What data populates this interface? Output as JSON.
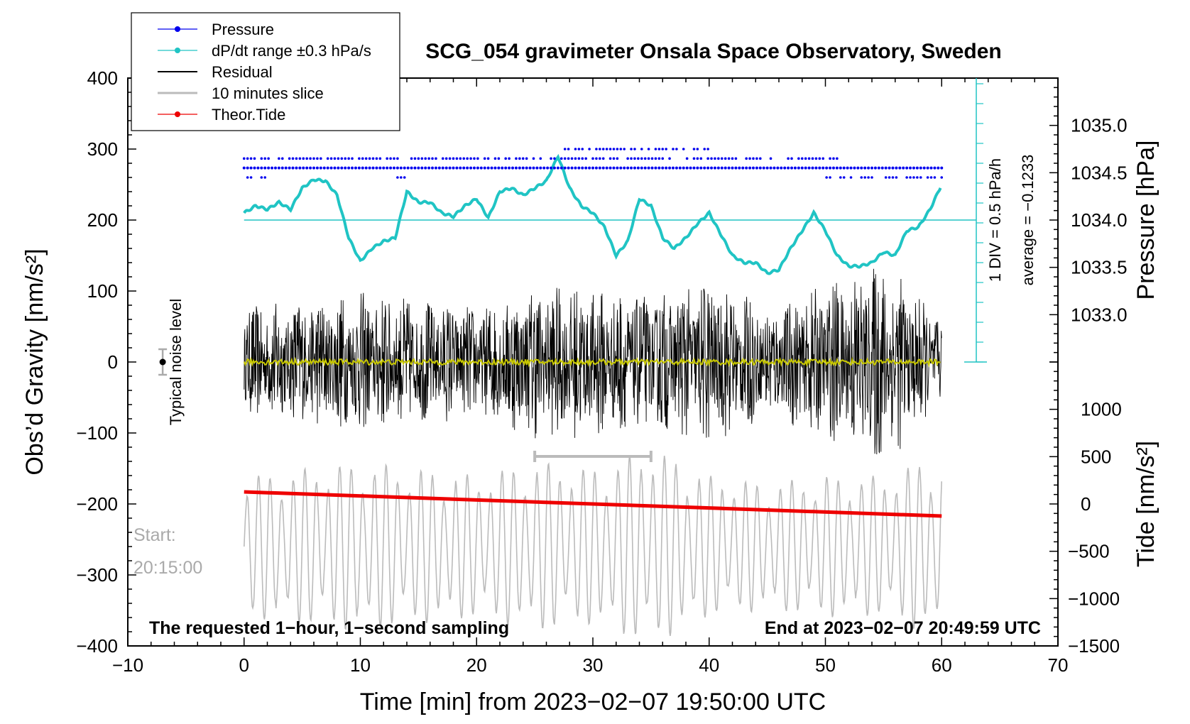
{
  "chart_data": {
    "type": "line",
    "title": "SCG_054 gravimeter Onsala Space Observatory, Sweden",
    "xlabel": "Time [min] from 2023−02−07 19:50:00 UTC",
    "ylabel_left": "Obs’d Gravity [nm/s²]",
    "ylabel_right_top": "Pressure [hPa]",
    "ylabel_right_bottom": "Tide [nm/s²]",
    "xlim": [
      -10,
      70
    ],
    "ylim": [
      -400,
      400
    ],
    "x_ticks": [
      "−10",
      "0",
      "10",
      "20",
      "30",
      "40",
      "50",
      "60",
      "70"
    ],
    "y_ticks_left": [
      "400",
      "300",
      "200",
      "100",
      "0",
      "−100",
      "−200",
      "−300",
      "−400"
    ],
    "pressure_axis": {
      "range_hpa": [
        1032.5,
        1035.5
      ],
      "ticks": [
        "1035.0",
        "1034.5",
        "1034.0",
        "1033.5",
        "1033.0"
      ],
      "tick_values": [
        1035.0,
        1034.5,
        1034.0,
        1033.5,
        1033.0
      ]
    },
    "tide_axis": {
      "range": [
        -1500,
        1500
      ],
      "ticks": [
        "1000",
        "500",
        "0",
        "−500",
        "−1000",
        "−1500"
      ],
      "tick_values": [
        1000,
        500,
        0,
        -500,
        -1000,
        -1500
      ]
    },
    "legend": {
      "position": "top-left",
      "entries": [
        {
          "label": "Pressure",
          "color": "#0000ee",
          "marker": "dot"
        },
        {
          "label": "dP/dt range ±0.3 hPa/s",
          "color": "#20c4c4",
          "marker": "dot"
        },
        {
          "label": "Residual",
          "color": "#000000",
          "marker": "line"
        },
        {
          "label": "10 minutes slice",
          "color": "#bbbbbb",
          "marker": "line"
        },
        {
          "label": "Theor.Tide",
          "color": "#ee0000",
          "marker": "dot"
        }
      ]
    },
    "annotations": {
      "bottom_left": "The requested 1−hour, 1−second sampling",
      "bottom_right": "End at 2023−02−07 20:49:59 UTC",
      "start_label": "Start:",
      "start_time": "20:15:00",
      "noise_label": "Typical noise level",
      "div_label": "1 DIV = 0.5 hPa/h",
      "average_label": "average = −0.1233",
      "slice_range_min": [
        25,
        35
      ]
    },
    "series": [
      {
        "name": "dP/dt range ±0.3 hPa/s",
        "color": "#20c4c4",
        "x": [
          0,
          1,
          2,
          3,
          4,
          5,
          6,
          7,
          8,
          9,
          10,
          11,
          12,
          13,
          14,
          15,
          16,
          17,
          18,
          19,
          20,
          21,
          22,
          23,
          24,
          25,
          26,
          27,
          28,
          29,
          30,
          31,
          32,
          33,
          34,
          35,
          36,
          37,
          38,
          39,
          40,
          41,
          42,
          43,
          44,
          45,
          46,
          47,
          48,
          49,
          50,
          51,
          52,
          53,
          54,
          55,
          56,
          57,
          58,
          59,
          60
        ],
        "y": [
          210,
          220,
          215,
          225,
          215,
          245,
          257,
          255,
          235,
          175,
          142,
          160,
          170,
          175,
          240,
          225,
          225,
          210,
          205,
          220,
          230,
          203,
          240,
          245,
          235,
          245,
          255,
          290,
          245,
          220,
          210,
          190,
          150,
          170,
          230,
          220,
          175,
          160,
          175,
          195,
          210,
          180,
          150,
          140,
          140,
          125,
          130,
          160,
          185,
          210,
          185,
          150,
          135,
          135,
          140,
          155,
          150,
          185,
          190,
          215,
          250
        ]
      },
      {
        "name": "Theor.Tide",
        "color": "#ee0000",
        "x": [
          0,
          60
        ],
        "y": [
          -183,
          -217
        ]
      },
      {
        "name": "Residual envelope",
        "color": "#000000",
        "x": [
          0,
          5,
          10,
          15,
          20,
          25,
          30,
          35,
          40,
          45,
          50,
          55,
          60
        ],
        "amplitude": [
          80,
          90,
          100,
          90,
          80,
          110,
          110,
          95,
          120,
          80,
          110,
          150,
          60
        ]
      },
      {
        "name": "10 minutes slice envelope",
        "color": "#bbbbbb",
        "x": [
          0,
          5,
          10,
          15,
          20,
          25,
          30,
          35,
          40,
          45,
          50,
          55,
          60
        ],
        "amplitude": [
          100,
          110,
          120,
          110,
          100,
          120,
          110,
          140,
          100,
          90,
          100,
          100,
          130
        ]
      },
      {
        "name": "Pressure",
        "color": "#0000ee",
        "levels_hpa": [
          1034.75,
          1034.65,
          1034.55,
          1034.45
        ]
      }
    ],
    "noise_bar": {
      "x": -7,
      "center": 0,
      "half_range": 18
    }
  }
}
